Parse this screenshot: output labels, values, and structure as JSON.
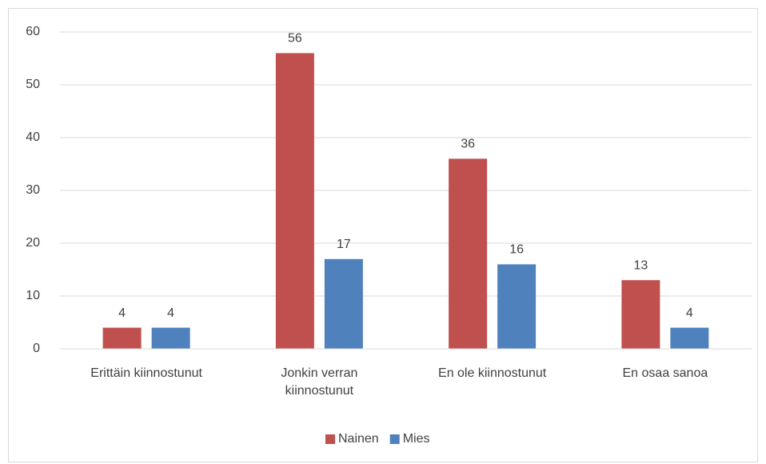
{
  "chart_data": {
    "type": "bar",
    "categories": [
      "Erittäin kiinnostunut",
      "Jonkin verran\nkiinnostunut",
      "En ole kiinnostunut",
      "En osaa sanoa"
    ],
    "series": [
      {
        "name": "Nainen",
        "color": "#c0504d",
        "values": [
          4,
          56,
          36,
          13
        ]
      },
      {
        "name": "Mies",
        "color": "#4f81bd",
        "values": [
          4,
          17,
          16,
          4
        ]
      }
    ],
    "ylim": [
      0,
      60
    ],
    "yticks": [
      0,
      10,
      20,
      30,
      40,
      50,
      60
    ],
    "grid": true,
    "legend": "bottom"
  }
}
